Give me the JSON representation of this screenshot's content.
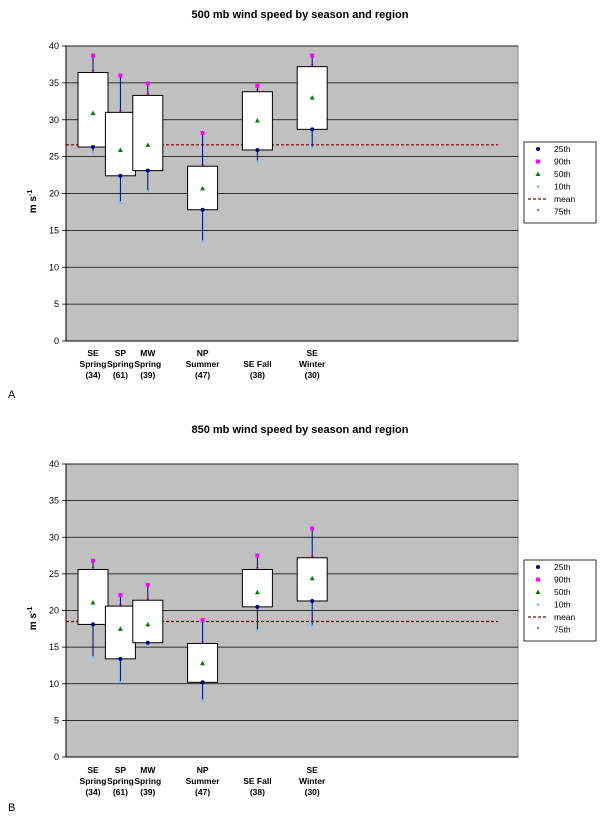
{
  "chart_data": [
    {
      "type": "box",
      "panel_label": "A",
      "title": "500 mb wind speed by season and region",
      "ylabel": "m s",
      "ylabel_sup": "-1",
      "ylim": [
        0,
        40
      ],
      "yticks": [
        0,
        5,
        10,
        15,
        20,
        25,
        30,
        35,
        40
      ],
      "grid": true,
      "legend_position": "right",
      "categories": [
        {
          "line1": "SE",
          "line2": "Spring",
          "line3": "(34)"
        },
        {
          "line1": "SP",
          "line2": "Spring",
          "line3": "(61)"
        },
        {
          "line1": "MW",
          "line2": "Spring",
          "line3": "(39)"
        },
        {
          "line1": "NP",
          "line2": "Summer",
          "line3": "(47)"
        },
        {
          "line1": "",
          "line2": "SE Fall",
          "line3": "(38)"
        },
        {
          "line1": "SE",
          "line2": "Winter",
          "line3": "(30)"
        }
      ],
      "category_slots": [
        0,
        1,
        2,
        4,
        6,
        8
      ],
      "series": [
        {
          "name": "25th",
          "values": [
            26.3,
            22.4,
            23.1,
            17.8,
            25.9,
            28.7
          ]
        },
        {
          "name": "90th",
          "values": [
            38.7,
            36.0,
            34.9,
            28.2,
            34.6,
            38.7
          ]
        },
        {
          "name": "50th",
          "values": [
            30.9,
            25.9,
            26.6,
            20.7,
            29.9,
            33.0
          ]
        },
        {
          "name": "10th",
          "values": [
            25.6,
            18.8,
            20.3,
            13.5,
            24.3,
            26.2
          ]
        },
        {
          "name": "mean",
          "values": [
            26.6
          ]
        },
        {
          "name": "75th",
          "values": [
            36.4,
            31.0,
            33.3,
            23.7,
            33.8,
            37.2
          ]
        }
      ]
    },
    {
      "type": "box",
      "panel_label": "B",
      "title": "850 mb wind speed by season and region",
      "ylabel": "m s",
      "ylabel_sup": "-1",
      "ylim": [
        0,
        40
      ],
      "yticks": [
        0,
        5,
        10,
        15,
        20,
        25,
        30,
        35,
        40
      ],
      "grid": true,
      "legend_position": "right",
      "categories": [
        {
          "line1": "SE",
          "line2": "Spring",
          "line3": "(34)"
        },
        {
          "line1": "SP",
          "line2": "Spring",
          "line3": "(61)"
        },
        {
          "line1": "MW",
          "line2": "Spring",
          "line3": "(39)"
        },
        {
          "line1": "NP",
          "line2": "Summer",
          "line3": "(47)"
        },
        {
          "line1": "",
          "line2": "SE Fall",
          "line3": "(38)"
        },
        {
          "line1": "SE",
          "line2": "Winter",
          "line3": "(30)"
        }
      ],
      "category_slots": [
        0,
        1,
        2,
        4,
        6,
        8
      ],
      "series": [
        {
          "name": "25th",
          "values": [
            18.1,
            13.4,
            15.6,
            10.2,
            20.5,
            21.3
          ]
        },
        {
          "name": "90th",
          "values": [
            26.8,
            22.1,
            23.5,
            18.7,
            27.5,
            31.2
          ]
        },
        {
          "name": "50th",
          "values": [
            21.1,
            17.5,
            18.1,
            12.8,
            22.5,
            24.4
          ]
        },
        {
          "name": "10th",
          "values": [
            13.6,
            10.2,
            15.2,
            7.7,
            17.3,
            17.9
          ]
        },
        {
          "name": "mean",
          "values": [
            18.5
          ]
        },
        {
          "name": "75th",
          "values": [
            25.6,
            20.6,
            21.4,
            15.5,
            25.6,
            27.2
          ]
        }
      ]
    }
  ],
  "colors": {
    "plot_background": "#c0c0c0",
    "grid": "#000000",
    "box_fill": "#ffffff",
    "p25": "#000080",
    "p90": "#ff00ff",
    "p50": "#008000",
    "p10": "#8fb4dc",
    "mean": "#800000",
    "p75": "#800080"
  }
}
